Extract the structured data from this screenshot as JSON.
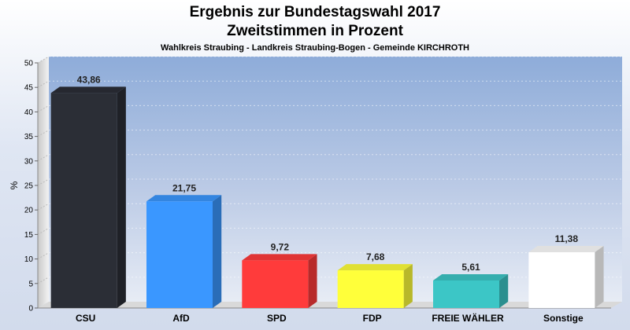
{
  "chart_data": {
    "type": "bar",
    "title": [
      "Ergebnis zur Bundestagswahl 2017",
      "Zweitstimmen in Prozent"
    ],
    "subtitle": "Wahlkreis Straubing - Landkreis Straubing-Bogen - Gemeinde KIRCHROTH",
    "ylabel": "%",
    "ylim": [
      0,
      50
    ],
    "yticks": [
      "0",
      "5",
      "10",
      "15",
      "20",
      "25",
      "30",
      "35",
      "40",
      "45",
      "50"
    ],
    "categories": [
      "CSU",
      "AfD",
      "SPD",
      "FDP",
      "FREIE WÄHLER",
      "Sonstige"
    ],
    "values": [
      43.86,
      21.75,
      9.72,
      7.68,
      5.61,
      11.38
    ],
    "value_labels": [
      "43,86",
      "21,75",
      "9,72",
      "7,68",
      "5,61",
      "11,38"
    ],
    "colors": [
      "#2b2e36",
      "#3a97ff",
      "#ff3b3b",
      "#ffff3a",
      "#3cc6c6",
      "#ffffff"
    ],
    "grid": true,
    "legend": "none"
  }
}
